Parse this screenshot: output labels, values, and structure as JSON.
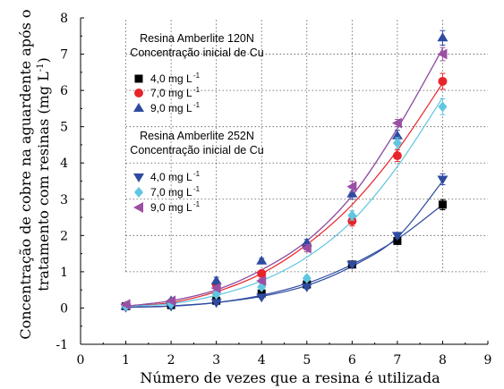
{
  "chart_data": {
    "type": "scatter",
    "xlabel": "Número de vezes que a resina é utilizada",
    "ylabel_line1": "Concentração de cobre na aguardente após o",
    "ylabel_line2": "tratamento com resinas (mg L",
    "ylabel_sup": "-1",
    "ylabel_close": ")",
    "xlim": [
      0,
      9
    ],
    "ylim": [
      -1,
      8
    ],
    "x_ticks": [
      "0",
      "1",
      "2",
      "3",
      "4",
      "5",
      "6",
      "7",
      "8",
      "9"
    ],
    "y_ticks": [
      "-1",
      "0",
      "1",
      "2",
      "3",
      "4",
      "5",
      "6",
      "7",
      "8"
    ],
    "grid": "dotted, from x=1 and y=1",
    "x": [
      1,
      2,
      3,
      4,
      5,
      6,
      7,
      8
    ],
    "groups": [
      {
        "title_line1": "Resina Amberlite 120N",
        "title_line2": "Concentração inicial de Cu",
        "series": [
          {
            "name": "4,0 mg L",
            "sup": "-1",
            "marker": "square",
            "color": "#000000",
            "values": [
              0.05,
              0.08,
              0.2,
              0.4,
              0.65,
              1.2,
              1.85,
              2.85
            ],
            "errors": [
              0.05,
              0.03,
              0.03,
              0.04,
              0.05,
              0.07,
              0.08,
              0.14
            ],
            "fit": [
              0.02,
              0.05,
              0.15,
              0.35,
              0.68,
              1.2,
              1.9,
              2.85
            ]
          },
          {
            "name": "7,0 mg L",
            "sup": "-1",
            "marker": "circle",
            "color": "#e8242b",
            "values": [
              0.05,
              0.15,
              0.65,
              0.95,
              1.7,
              2.4,
              4.2,
              6.25
            ],
            "errors": [
              0.04,
              0.05,
              0.08,
              0.07,
              0.1,
              0.14,
              0.16,
              0.22
            ],
            "fit": [
              0.05,
              0.15,
              0.45,
              0.95,
              1.75,
              2.85,
              4.35,
              6.2
            ]
          },
          {
            "name": "9,0 mg L",
            "sup": "-1",
            "marker": "triangle-up",
            "color": "#2e4ba0",
            "values": [
              0.05,
              0.2,
              0.75,
              1.3,
              1.8,
              3.15,
              4.75,
              7.45
            ],
            "errors": [
              0.04,
              0.04,
              0.1,
              0.07,
              0.09,
              0.15,
              0.15,
              0.2
            ],
            "fit": [
              0.05,
              0.2,
              0.5,
              1.05,
              1.85,
              3.1,
              4.95,
              7.15
            ]
          }
        ]
      },
      {
        "title_line1": "Resina Amberlite 252N",
        "title_line2": "Concentração inicial de Cu",
        "series": [
          {
            "name": "4,0 mg L",
            "sup": "-1",
            "marker": "triangle-down",
            "color": "#2e4ba0",
            "values": [
              0.02,
              0.05,
              0.15,
              0.3,
              0.58,
              1.2,
              2.0,
              3.55
            ],
            "errors": [
              0.03,
              0.03,
              0.04,
              0.04,
              0.05,
              0.06,
              0.07,
              0.15
            ],
            "fit": [
              0.02,
              0.06,
              0.15,
              0.32,
              0.62,
              1.15,
              1.95,
              3.5
            ]
          },
          {
            "name": "7,0 mg L",
            "sup": "-1",
            "marker": "diamond",
            "color": "#5fc6e0",
            "values": [
              0.05,
              0.12,
              0.38,
              0.58,
              0.82,
              2.55,
              4.55,
              5.55
            ],
            "errors": [
              0.04,
              0.04,
              0.05,
              0.06,
              0.07,
              0.13,
              0.15,
              0.22
            ],
            "fit": [
              0.05,
              0.12,
              0.35,
              0.75,
              1.4,
              2.4,
              3.9,
              5.8
            ]
          },
          {
            "name": "9,0 mg L",
            "sup": "-1",
            "marker": "triangle-left",
            "color": "#9b4fa3",
            "values": [
              0.1,
              0.2,
              0.55,
              0.75,
              1.65,
              3.35,
              5.1,
              7.0
            ],
            "errors": [
              0.05,
              0.05,
              0.06,
              0.06,
              0.1,
              0.15,
              0.1,
              0.18
            ],
            "fit": [
              0.05,
              0.2,
              0.5,
              1.05,
              1.85,
              3.1,
              4.95,
              7.15
            ]
          }
        ]
      }
    ]
  }
}
